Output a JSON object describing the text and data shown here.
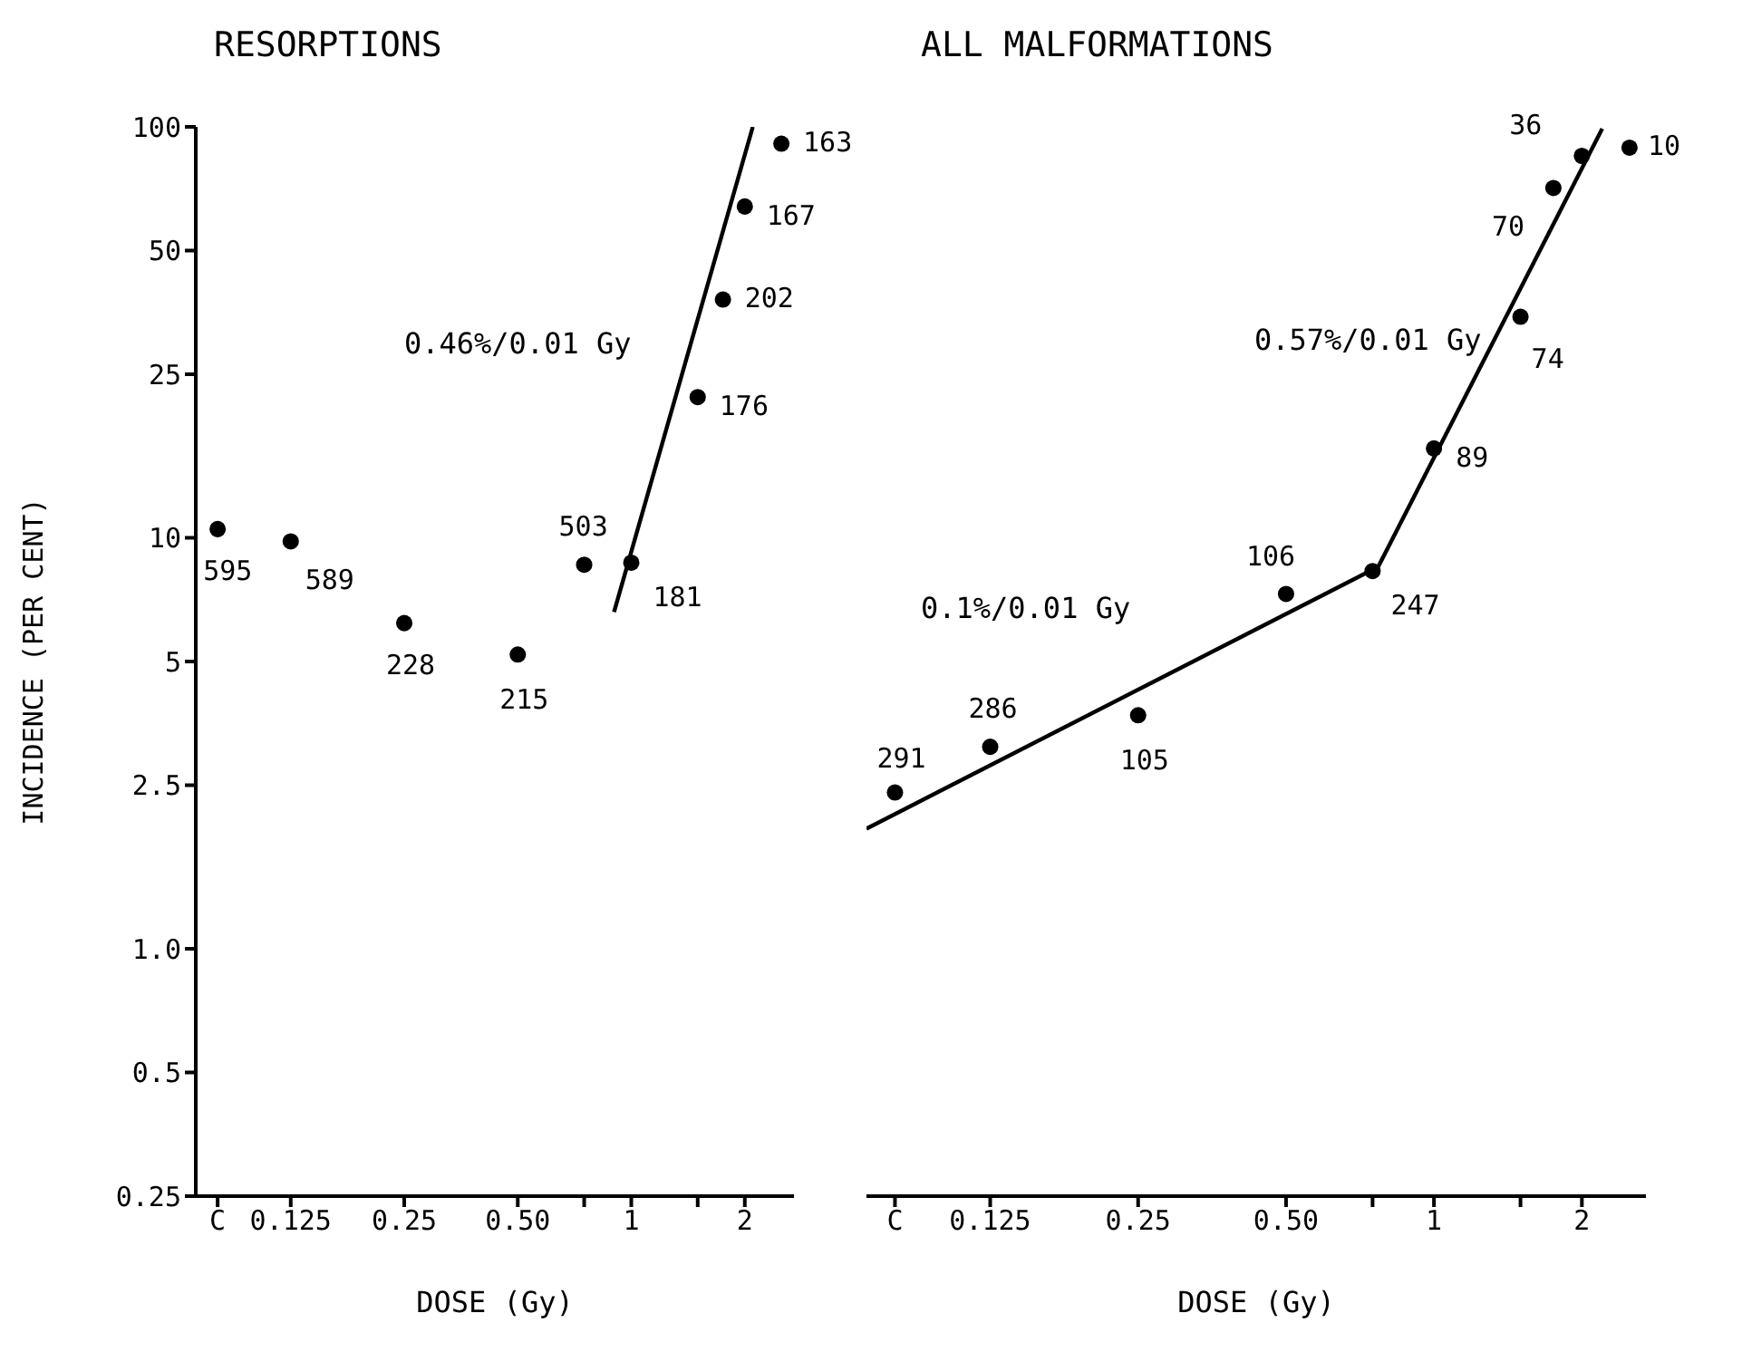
{
  "chart_data": [
    {
      "type": "scatter",
      "title": "RESORPTIONS",
      "xlabel": "DOSE (Gy)",
      "ylabel": "INCIDENCE (PER CENT)",
      "log": "xy",
      "grid": false,
      "legend": false,
      "xlim": [
        0.07,
        2.7
      ],
      "xticks": [
        {
          "value": 0.08,
          "label": "C"
        },
        0.125,
        0.25,
        {
          "value": 0.5,
          "label": "0.50"
        },
        {
          "value": 0.75,
          "label": null
        },
        1,
        {
          "value": 1.5,
          "label": null
        },
        2
      ],
      "ylim": [
        0.25,
        100
      ],
      "yticks": [
        0.25,
        0.5,
        {
          "value": 1,
          "label": "1.0"
        },
        2.5,
        5,
        10,
        25,
        50,
        100
      ],
      "annotations": [
        "0.46%/0.01 Gy",
        {
          "text": "595",
          "x": 0.08,
          "y": 10.5
        },
        {
          "text": "589",
          "x": 0.125,
          "y": 9.8
        },
        {
          "text": "228",
          "x": 0.25,
          "y": 6.2
        },
        {
          "text": "215",
          "x": 0.5,
          "y": 5.2
        },
        {
          "text": "503",
          "x": 0.75,
          "y": 8.6
        },
        {
          "text": "181",
          "x": 1,
          "y": 8.7
        },
        {
          "text": "176",
          "x": 1.5,
          "y": 22
        },
        {
          "text": "202",
          "x": 1.75,
          "y": 38
        },
        {
          "text": "167",
          "x": 2,
          "y": 64
        },
        {
          "text": "163",
          "x": 2.5,
          "y": 91
        }
      ],
      "series": [
        {
          "marker": "circle",
          "color": "#000000",
          "x": [
            0.08,
            0.125,
            0.25,
            0.5,
            0.75,
            1,
            1.5,
            1.75,
            2,
            2.5
          ],
          "values": [
            10.5,
            9.8,
            6.2,
            5.2,
            8.6,
            8.7,
            22,
            38,
            64,
            91
          ]
        },
        {
          "type": "line",
          "marker": "none",
          "color": "#000000",
          "line_style": "solid",
          "x": [
            0.9,
            2.1
          ],
          "values": [
            6.6,
            100
          ]
        }
      ]
    },
    {
      "type": "scatter",
      "title": "ALL MALFORMATIONS",
      "xlabel": "DOSE (Gy)",
      "log": "xy",
      "grid": false,
      "legend": false,
      "tick_labels": "x",
      "xlim": [
        0.07,
        2.7
      ],
      "xticks": [
        {
          "value": 0.08,
          "label": "C"
        },
        0.125,
        0.25,
        {
          "value": 0.5,
          "label": "0.50"
        },
        {
          "value": 0.75,
          "label": null
        },
        1,
        {
          "value": 1.5,
          "label": null
        },
        2
      ],
      "ylim": [
        0.25,
        100
      ],
      "annotations": [
        "0.57%/0.01 Gy",
        "0.1%/0.01 Gy",
        {
          "text": "291",
          "x": 0.08,
          "y": 2.4
        },
        {
          "text": "286",
          "x": 0.125,
          "y": 3.1
        },
        {
          "text": "105",
          "x": 0.25,
          "y": 3.7
        },
        {
          "text": "106",
          "x": 0.5,
          "y": 7.3
        },
        {
          "text": "247",
          "x": 0.75,
          "y": 8.3
        },
        {
          "text": "89",
          "x": 1,
          "y": 16.5
        },
        {
          "text": "74",
          "x": 1.5,
          "y": 34.5
        },
        {
          "text": "70",
          "x": 1.75,
          "y": 71
        },
        {
          "text": "36",
          "x": 2,
          "y": 85
        },
        {
          "text": "10",
          "x": 2.5,
          "y": 89
        }
      ],
      "series": [
        {
          "marker": "circle",
          "color": "#000000",
          "x": [
            0.08,
            0.125,
            0.25,
            0.5,
            0.75,
            1,
            1.5,
            1.75,
            2,
            2.5
          ],
          "values": [
            2.4,
            3.1,
            3.7,
            7.3,
            8.3,
            16.5,
            34.5,
            71,
            85,
            89
          ]
        },
        {
          "type": "line",
          "marker": "none",
          "color": "#000000",
          "line_style": "solid",
          "x": [
            0.07,
            0.77
          ],
          "values": [
            1.96,
            8.5
          ]
        },
        {
          "type": "line",
          "marker": "none",
          "color": "#000000",
          "line_style": "solid",
          "x": [
            0.77,
            2.2
          ],
          "values": [
            8.5,
            99
          ]
        }
      ]
    }
  ]
}
